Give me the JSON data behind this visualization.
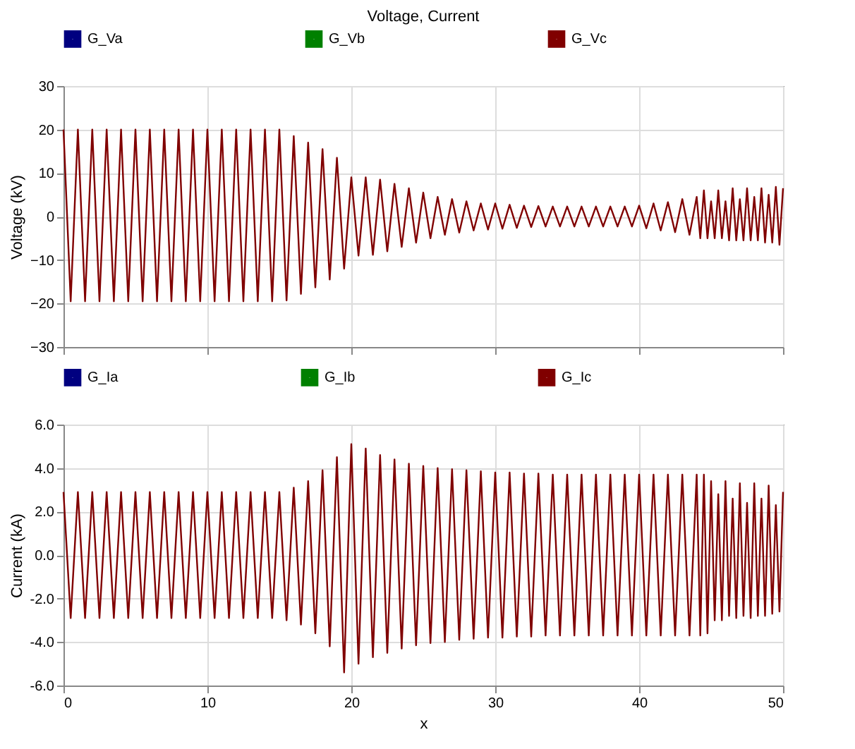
{
  "chart_data": [
    {
      "type": "line",
      "title": "Voltage, Current",
      "ylabel": "Voltage (kV)",
      "xlim": [
        0,
        50
      ],
      "xticks": [
        0,
        10,
        20,
        30,
        40,
        50
      ],
      "ylim": [
        -30,
        30
      ],
      "yticks": [
        -30,
        -20,
        -10,
        0,
        10,
        20,
        30
      ],
      "grid": true,
      "legend": "top",
      "tick_labels": "y",
      "x": [
        0,
        0.5,
        1,
        1.5,
        2,
        2.5,
        3,
        3.5,
        4,
        4.5,
        5,
        5.5,
        6,
        6.5,
        7,
        7.5,
        8,
        8.5,
        9,
        9.5,
        10,
        10.5,
        11,
        11.5,
        12,
        12.5,
        13,
        13.5,
        14,
        14.5,
        15,
        15.5,
        16,
        16.5,
        17,
        17.5,
        18,
        18.5,
        19,
        19.5,
        20,
        20.5,
        21,
        21.5,
        22,
        22.5,
        23,
        23.5,
        24,
        24.5,
        25,
        25.5,
        26,
        26.5,
        27,
        27.5,
        28,
        28.5,
        29,
        29.5,
        30,
        30.5,
        31,
        31.5,
        32,
        32.5,
        33,
        33.5,
        34,
        34.5,
        35,
        35.5,
        36,
        36.5,
        37,
        37.5,
        38,
        38.5,
        39,
        39.5,
        40,
        40.5,
        41,
        41.5,
        42,
        42.5,
        43,
        43.5,
        44,
        44.25,
        44.5,
        44.75,
        45,
        45.25,
        45.5,
        45.75,
        46,
        46.25,
        46.5,
        46.75,
        47,
        47.25,
        47.5,
        47.75,
        48,
        48.25,
        48.5,
        48.75,
        49,
        49.25,
        49.5,
        49.75,
        50
      ],
      "series": [
        {
          "name": "G_Va",
          "color": "#000080",
          "values": [
            null,
            null,
            null,
            null,
            null,
            null,
            null,
            null,
            null,
            null,
            null,
            null,
            null,
            null,
            null,
            null,
            null,
            null,
            null,
            null,
            null,
            null,
            null,
            null,
            null,
            null,
            null,
            null,
            null,
            null,
            null,
            null,
            null,
            null,
            null,
            null,
            null,
            null,
            null,
            null,
            null,
            null,
            null,
            null,
            null,
            null,
            null,
            null,
            null,
            null,
            null,
            null,
            null,
            null,
            null,
            null,
            null,
            null,
            null,
            null,
            null,
            null,
            null,
            null,
            null,
            null,
            null,
            null,
            null,
            null,
            null,
            null,
            null,
            null,
            null,
            null,
            null,
            null,
            null,
            null,
            null,
            null,
            null,
            null,
            null,
            null,
            null,
            null,
            null,
            null,
            null,
            null,
            null,
            null,
            null,
            null,
            null,
            null,
            null,
            null,
            null,
            null,
            null,
            null,
            null,
            null,
            null,
            null,
            null,
            null,
            null,
            null,
            null
          ]
        },
        {
          "name": "G_Vb",
          "color": "#008000",
          "values": [
            null,
            null,
            null,
            null,
            null,
            null,
            null,
            null,
            null,
            null,
            null,
            null,
            null,
            null,
            null,
            null,
            null,
            null,
            null,
            null,
            null,
            null,
            null,
            null,
            null,
            null,
            null,
            null,
            null,
            null,
            null,
            null,
            null,
            null,
            null,
            null,
            null,
            null,
            null,
            null,
            null,
            null,
            null,
            null,
            null,
            null,
            null,
            null,
            null,
            null,
            null,
            null,
            null,
            null,
            null,
            null,
            null,
            null,
            null,
            null,
            null,
            null,
            null,
            null,
            null,
            null,
            null,
            null,
            null,
            null,
            null,
            null,
            null,
            null,
            null,
            null,
            null,
            null,
            null,
            null,
            null,
            null,
            null,
            null,
            null,
            null,
            null,
            null,
            null,
            null,
            null,
            null,
            null,
            null,
            null,
            null,
            null,
            null,
            null,
            null,
            null,
            null,
            null,
            null,
            null,
            null,
            null,
            null,
            null,
            null,
            null,
            null,
            null
          ]
        },
        {
          "name": "G_Vc",
          "color": "#800000",
          "values": [
            20,
            -19.5,
            20,
            -19.5,
            20,
            -19.5,
            20,
            -19.5,
            20,
            -19.5,
            20,
            -19.5,
            20,
            -19.5,
            20,
            -19.5,
            20,
            -19.5,
            20,
            -19.5,
            20,
            -19.5,
            20,
            -19.5,
            20,
            -19.5,
            20,
            -19.5,
            20,
            -19.5,
            20,
            -19.3,
            18.5,
            -17.8,
            17,
            -16.3,
            15.5,
            -14.5,
            13.5,
            -12,
            9,
            -9,
            9,
            -8.8,
            8.5,
            -8,
            7.5,
            -7,
            6.5,
            -6,
            5.5,
            -5,
            4.5,
            -4.2,
            4,
            -3.7,
            3.5,
            -3.2,
            3,
            -3,
            3,
            -2.8,
            2.7,
            -2.6,
            2.5,
            -2.4,
            2.4,
            -2.3,
            2.3,
            -2.3,
            2.3,
            -2.3,
            2.3,
            -2.3,
            2.3,
            -2.3,
            2.3,
            -2.3,
            2.3,
            -2.3,
            2.5,
            -2.7,
            3,
            -3.2,
            3.3,
            -3.6,
            4,
            -4.2,
            4.5,
            -5,
            6,
            -5,
            3.5,
            -5,
            6,
            -5,
            3.5,
            -5.5,
            6.5,
            -5.5,
            4,
            -5.5,
            6.5,
            -5.5,
            4.5,
            -5.5,
            6.5,
            -6,
            5,
            -6,
            6.8,
            -6.5,
            6.5
          ]
        }
      ]
    },
    {
      "type": "line",
      "ylabel": "Current (kA)",
      "xlabel": "x",
      "xlim": [
        0,
        50
      ],
      "xticks": [
        0,
        10,
        20,
        30,
        40,
        50
      ],
      "ylim": [
        -6,
        6
      ],
      "yticks": [
        {
          "value": -6,
          "label": "-6.0"
        },
        {
          "value": -4,
          "label": "-4.0"
        },
        {
          "value": -2,
          "label": "-2.0"
        },
        {
          "value": 0,
          "label": "0.0"
        },
        {
          "value": 2,
          "label": "2.0"
        },
        {
          "value": 4,
          "label": "4.0"
        },
        {
          "value": 6,
          "label": "6.0"
        }
      ],
      "grid": true,
      "legend": "top",
      "x": [
        0,
        0.5,
        1,
        1.5,
        2,
        2.5,
        3,
        3.5,
        4,
        4.5,
        5,
        5.5,
        6,
        6.5,
        7,
        7.5,
        8,
        8.5,
        9,
        9.5,
        10,
        10.5,
        11,
        11.5,
        12,
        12.5,
        13,
        13.5,
        14,
        14.5,
        15,
        15.5,
        16,
        16.5,
        17,
        17.5,
        18,
        18.5,
        19,
        19.5,
        20,
        20.5,
        21,
        21.5,
        22,
        22.5,
        23,
        23.5,
        24,
        24.5,
        25,
        25.5,
        26,
        26.5,
        27,
        27.5,
        28,
        28.5,
        29,
        29.5,
        30,
        30.5,
        31,
        31.5,
        32,
        32.5,
        33,
        33.5,
        34,
        34.5,
        35,
        35.5,
        36,
        36.5,
        37,
        37.5,
        38,
        38.5,
        39,
        39.5,
        40,
        40.5,
        41,
        41.5,
        42,
        42.5,
        43,
        43.5,
        44,
        44.25,
        44.5,
        44.75,
        45,
        45.25,
        45.5,
        45.75,
        46,
        46.25,
        46.5,
        46.75,
        47,
        47.25,
        47.5,
        47.75,
        48,
        48.25,
        48.5,
        48.75,
        49,
        49.25,
        49.5,
        49.75,
        50
      ],
      "series": [
        {
          "name": "G_Ia",
          "color": "#000080",
          "values": [
            null,
            null,
            null,
            null,
            null,
            null,
            null,
            null,
            null,
            null,
            null,
            null,
            null,
            null,
            null,
            null,
            null,
            null,
            null,
            null,
            null,
            null,
            null,
            null,
            null,
            null,
            null,
            null,
            null,
            null,
            null,
            null,
            null,
            null,
            null,
            null,
            null,
            null,
            null,
            null,
            null,
            null,
            null,
            null,
            null,
            null,
            null,
            null,
            null,
            null,
            null,
            null,
            null,
            null,
            null,
            null,
            null,
            null,
            null,
            null,
            null,
            null,
            null,
            null,
            null,
            null,
            null,
            null,
            null,
            null,
            null,
            null,
            null,
            null,
            null,
            null,
            null,
            null,
            null,
            null,
            null,
            null,
            null,
            null,
            null,
            null,
            null,
            null,
            null,
            null,
            null,
            null,
            null,
            null,
            null,
            null,
            null,
            null,
            null,
            null,
            null,
            null,
            null,
            null,
            null,
            null,
            null,
            null,
            null,
            null,
            null,
            null,
            null
          ]
        },
        {
          "name": "G_Ib",
          "color": "#008000",
          "values": [
            null,
            null,
            null,
            null,
            null,
            null,
            null,
            null,
            null,
            null,
            null,
            null,
            null,
            null,
            null,
            null,
            null,
            null,
            null,
            null,
            null,
            null,
            null,
            null,
            null,
            null,
            null,
            null,
            null,
            null,
            null,
            null,
            null,
            null,
            null,
            null,
            null,
            null,
            null,
            null,
            null,
            null,
            null,
            null,
            null,
            null,
            null,
            null,
            null,
            null,
            null,
            null,
            null,
            null,
            null,
            null,
            null,
            null,
            null,
            null,
            null,
            null,
            null,
            null,
            null,
            null,
            null,
            null,
            null,
            null,
            null,
            null,
            null,
            null,
            null,
            null,
            null,
            null,
            null,
            null,
            null,
            null,
            null,
            null,
            null,
            null,
            null,
            null,
            null,
            null,
            null,
            null,
            null,
            null,
            null,
            null,
            null,
            null,
            null,
            null,
            null,
            null,
            null,
            null,
            null,
            null,
            null,
            null,
            null,
            null,
            null,
            null,
            null
          ]
        },
        {
          "name": "G_Ic",
          "color": "#800000",
          "values": [
            2.9,
            -2.9,
            2.9,
            -2.9,
            2.9,
            -2.9,
            2.9,
            -2.9,
            2.9,
            -2.9,
            2.9,
            -2.9,
            2.9,
            -2.9,
            2.9,
            -2.9,
            2.9,
            -2.9,
            2.9,
            -2.9,
            2.9,
            -2.9,
            2.9,
            -2.9,
            2.9,
            -2.9,
            2.9,
            -2.9,
            2.9,
            -2.9,
            2.9,
            -3.0,
            3.1,
            -3.2,
            3.4,
            -3.6,
            3.9,
            -4.2,
            4.5,
            -5.4,
            5.1,
            -5.0,
            4.9,
            -4.7,
            4.6,
            -4.5,
            4.4,
            -4.3,
            4.2,
            -4.15,
            4.1,
            -4.05,
            4.0,
            -4.0,
            3.95,
            -3.9,
            3.9,
            -3.85,
            3.85,
            -3.8,
            3.8,
            -3.8,
            3.8,
            -3.75,
            3.75,
            -3.75,
            3.75,
            -3.7,
            3.7,
            -3.7,
            3.7,
            -3.7,
            3.7,
            -3.7,
            3.7,
            -3.7,
            3.7,
            -3.7,
            3.7,
            -3.7,
            3.7,
            -3.7,
            3.7,
            -3.7,
            3.7,
            -3.7,
            3.7,
            -3.7,
            3.7,
            -3.7,
            3.7,
            -3.6,
            3.4,
            -3.0,
            2.8,
            -3.0,
            3.4,
            -2.8,
            2.6,
            -2.9,
            3.3,
            -2.8,
            2.4,
            -2.9,
            3.3,
            -2.8,
            2.6,
            -2.8,
            3.2,
            -2.7,
            2.3,
            -2.6,
            2.9
          ]
        }
      ]
    }
  ]
}
